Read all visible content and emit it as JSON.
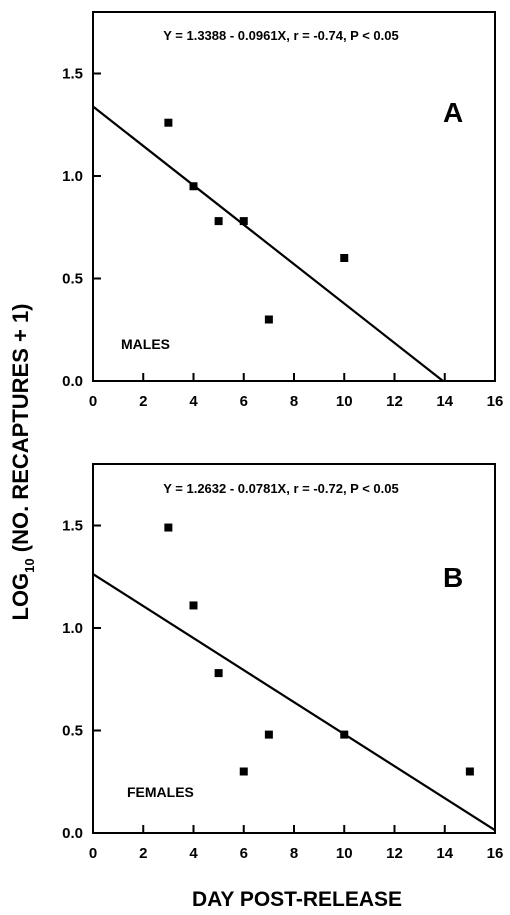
{
  "y_label_main": "LOG",
  "y_label_sub": "10",
  "y_label_rest": " (NO. RECAPTURES + 1)",
  "x_label": "DAY POST-RELEASE",
  "chart_data": [
    {
      "type": "scatter",
      "panel_letter": "A",
      "sex_label": "MALES",
      "equation": "Y = 1.3388 - 0.0961X, r = -0.74, P < 0.05",
      "xlim": [
        0,
        16
      ],
      "ylim": [
        0,
        1.8
      ],
      "x_ticks": [
        "0",
        "2",
        "4",
        "6",
        "8",
        "10",
        "12",
        "14",
        "16"
      ],
      "y_ticks": [
        "0.0",
        "0.5",
        "1.0",
        "1.5"
      ],
      "points": [
        {
          "x": 3,
          "y": 1.26
        },
        {
          "x": 4,
          "y": 0.95
        },
        {
          "x": 5,
          "y": 0.78
        },
        {
          "x": 6,
          "y": 0.78
        },
        {
          "x": 7,
          "y": 0.3
        },
        {
          "x": 10,
          "y": 0.6
        }
      ],
      "regression": {
        "intercept": 1.3388,
        "slope": -0.0961
      }
    },
    {
      "type": "scatter",
      "panel_letter": "B",
      "sex_label": "FEMALES",
      "equation": "Y = 1.2632 - 0.0781X, r = -0.72, P < 0.05",
      "xlim": [
        0,
        16
      ],
      "ylim": [
        0,
        1.8
      ],
      "x_ticks": [
        "0",
        "2",
        "4",
        "6",
        "8",
        "10",
        "12",
        "14",
        "16"
      ],
      "y_ticks": [
        "0.0",
        "0.5",
        "1.0",
        "1.5"
      ],
      "points": [
        {
          "x": 3,
          "y": 1.49
        },
        {
          "x": 4,
          "y": 1.11
        },
        {
          "x": 5,
          "y": 0.78
        },
        {
          "x": 6,
          "y": 0.3
        },
        {
          "x": 7,
          "y": 0.48
        },
        {
          "x": 10,
          "y": 0.48
        },
        {
          "x": 15,
          "y": 0.3
        }
      ],
      "regression": {
        "intercept": 1.2632,
        "slope": -0.0781
      }
    }
  ]
}
